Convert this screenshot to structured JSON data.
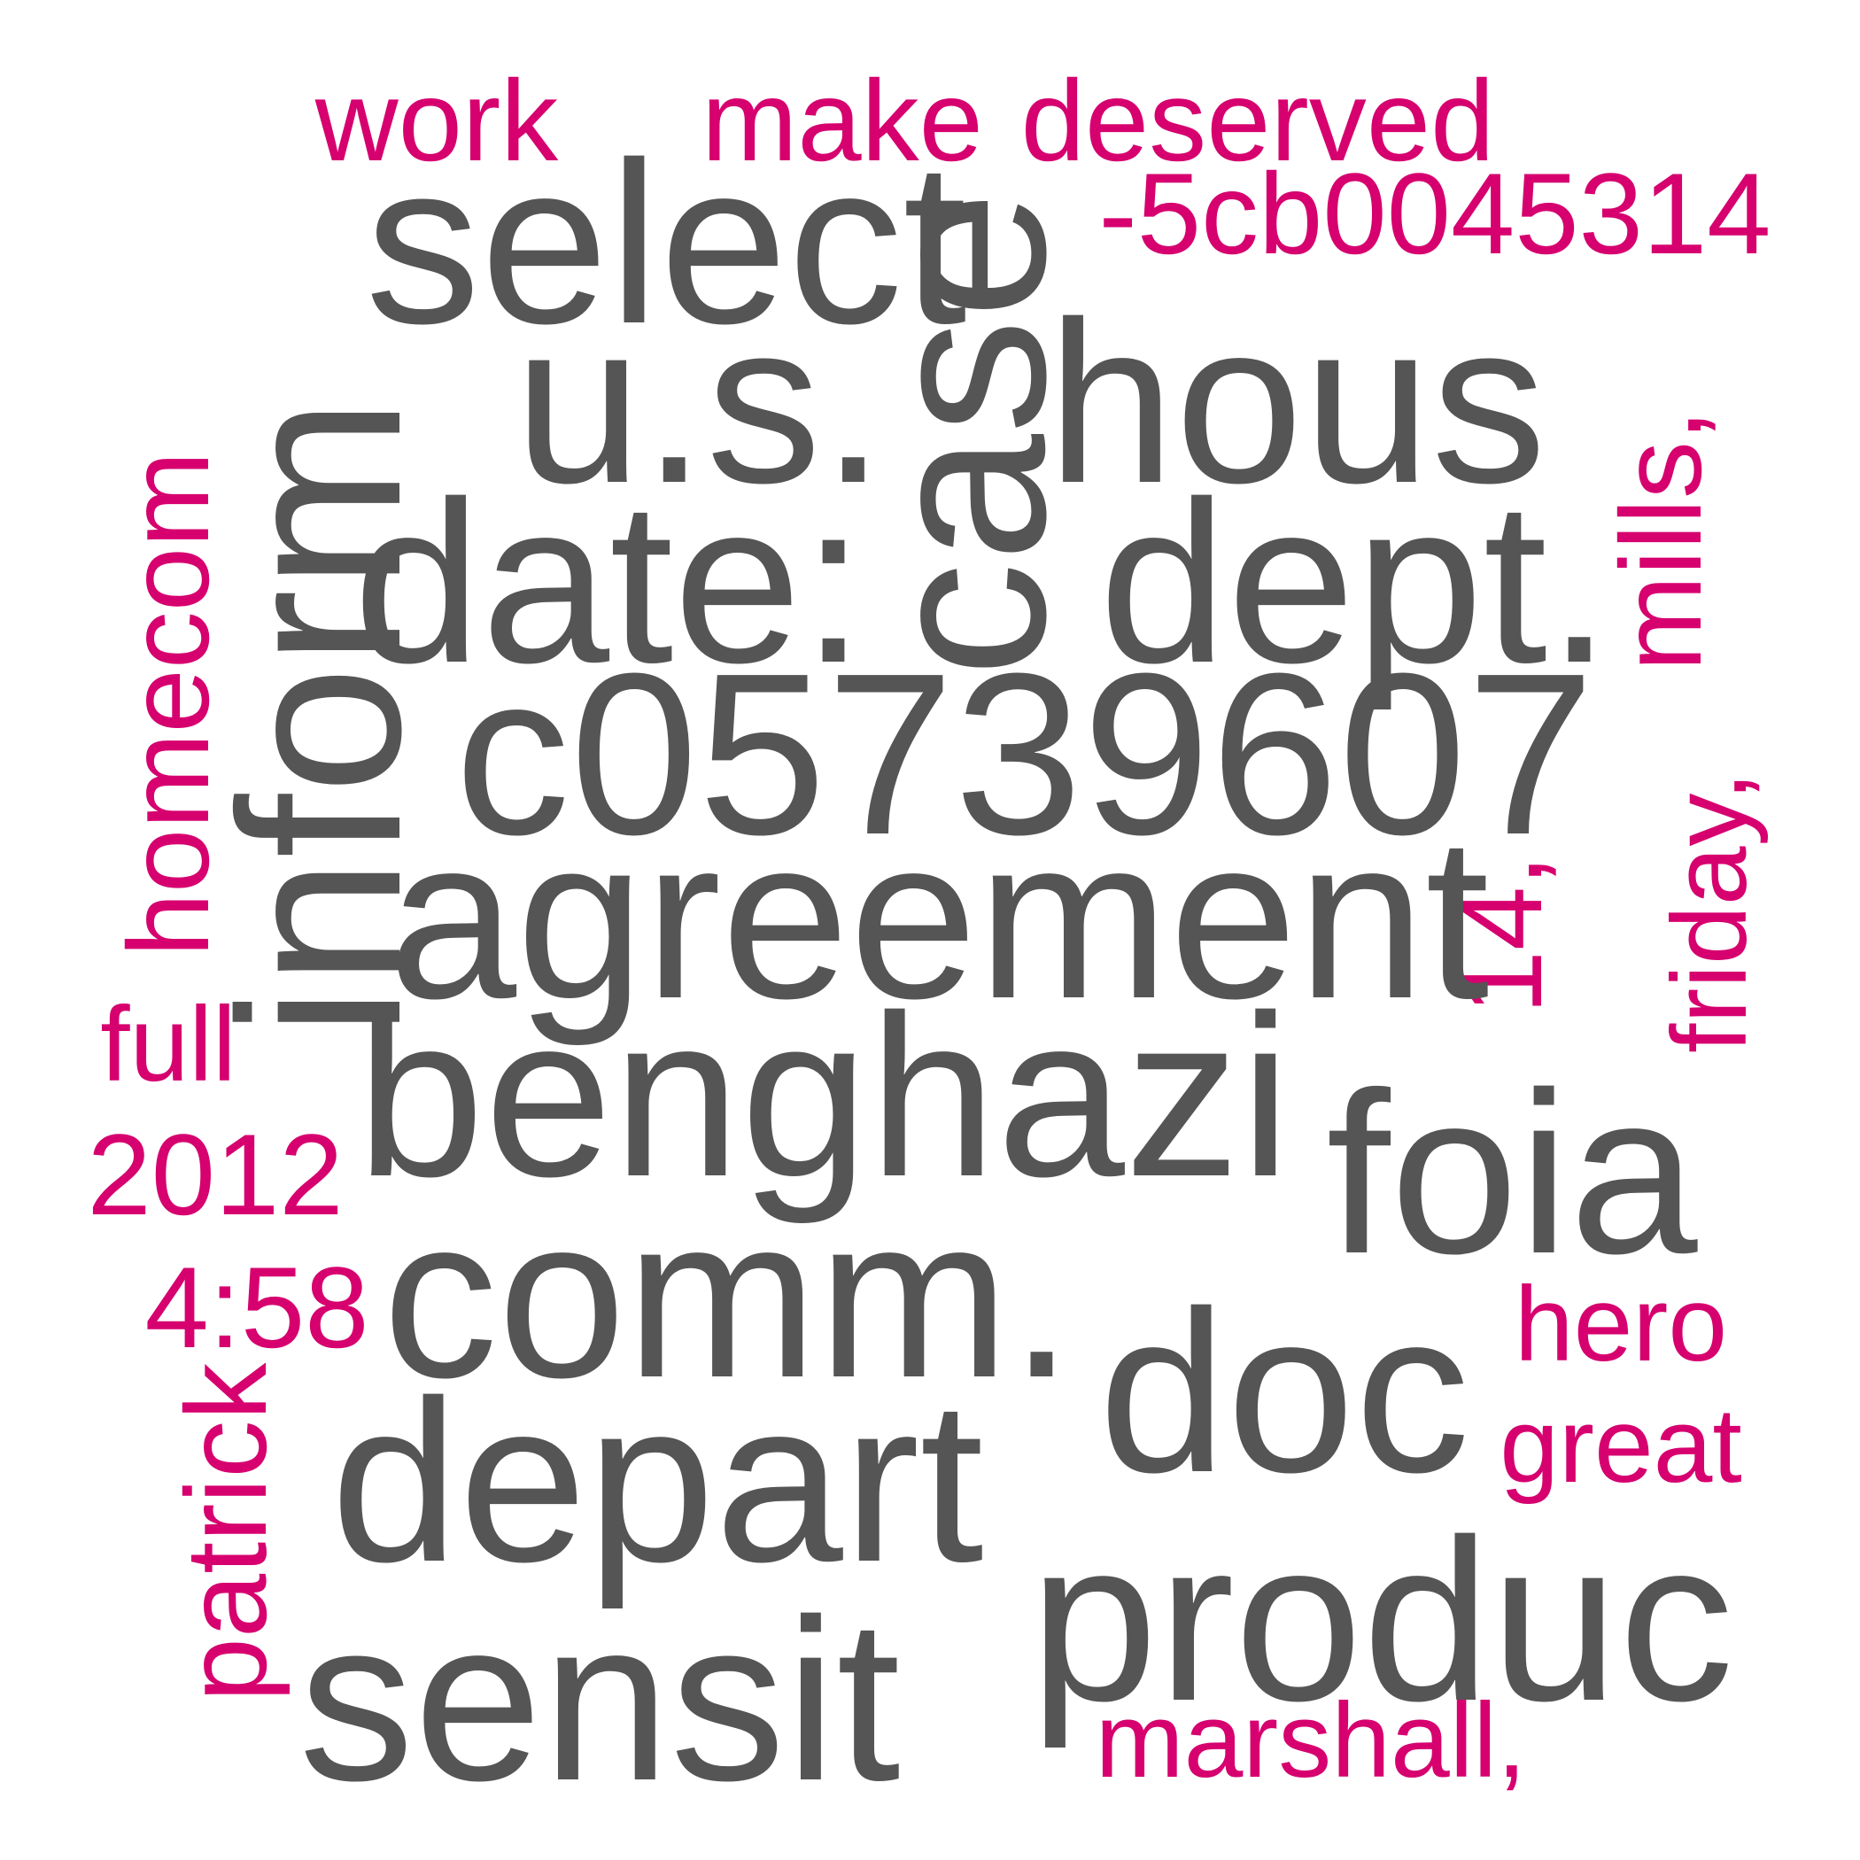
{
  "colors": {
    "primary_word": "#555555",
    "secondary_word": "#d6006f",
    "background": "#ffffff"
  },
  "words": {
    "work": "work",
    "make": "make",
    "deserved": "deserved",
    "hash": "-5cb0045314",
    "select": "select",
    "case": "case",
    "us": "u.s.",
    "hous": "hous",
    "inform": "inform",
    "date": "date:",
    "dept": "dept.",
    "mills": "mills,",
    "homecom": "homecom",
    "c05739607": "c05739607",
    "friday": "friday,",
    "agreement": "agreement",
    "fourteen": "14,",
    "full": "full",
    "benghazi": "benghazi",
    "year": "2012",
    "foia": "foia",
    "time": "4:58",
    "comm": "comm.",
    "hero": "hero",
    "doc": "doc",
    "great": "great",
    "patrick": "patrick",
    "depart": "depart",
    "produc": "produc",
    "sensit": "sensit",
    "marshall": "marshall,"
  }
}
